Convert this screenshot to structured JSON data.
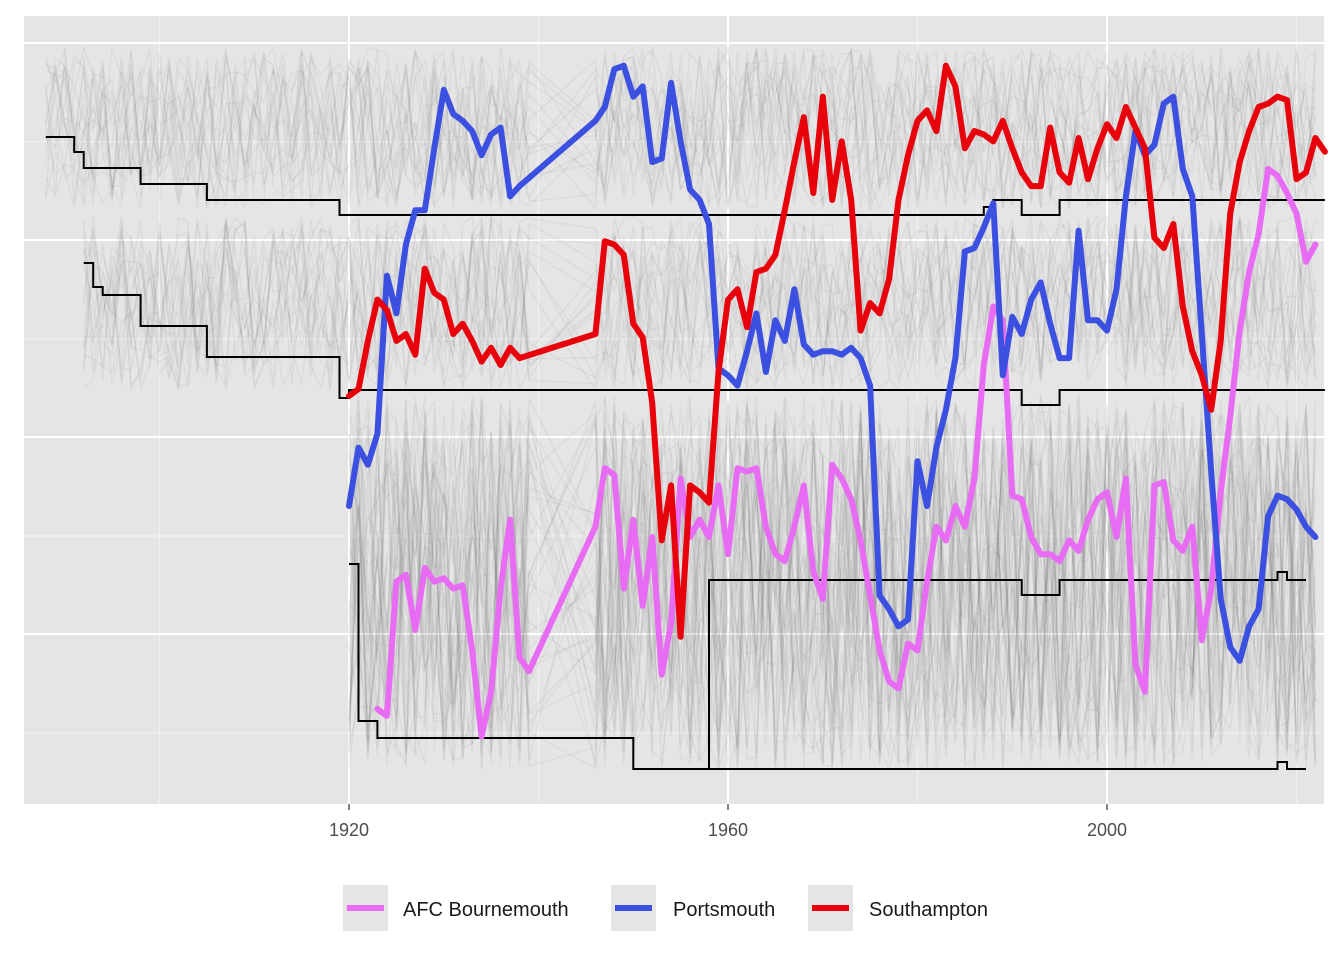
{
  "chart_data": {
    "type": "line",
    "title": "",
    "xlabel": "",
    "ylabel": "",
    "xlim": [
      1888,
      2022
    ],
    "x_ticks": [
      1920,
      1960,
      2000
    ],
    "x_tick_labels": [
      "1920",
      "1960",
      "2000"
    ],
    "grid": true,
    "legend_position": "bottom",
    "series": [
      {
        "name": "AFC Bournemouth",
        "color": "#e76bf3",
        "values": [
          [
            1923,
            0.25
          ],
          [
            1924,
            0.23
          ],
          [
            1925,
            0.62
          ],
          [
            1926,
            0.64
          ],
          [
            1927,
            0.48
          ],
          [
            1928,
            0.66
          ],
          [
            1929,
            0.62
          ],
          [
            1930,
            0.63
          ],
          [
            1931,
            0.6
          ],
          [
            1932,
            0.61
          ],
          [
            1933,
            0.42
          ],
          [
            1934,
            0.17
          ],
          [
            1935,
            0.3
          ],
          [
            1936,
            0.6
          ],
          [
            1937,
            0.8
          ],
          [
            1938,
            0.4
          ],
          [
            1939,
            0.36
          ],
          [
            1946,
            0.78
          ],
          [
            1947,
            0.95
          ],
          [
            1948,
            0.93
          ],
          [
            1949,
            0.6
          ],
          [
            1950,
            0.8
          ],
          [
            1951,
            0.55
          ],
          [
            1952,
            0.75
          ],
          [
            1953,
            0.35
          ],
          [
            1954,
            0.5
          ],
          [
            1955,
            0.92
          ],
          [
            1956,
            0.75
          ],
          [
            1957,
            0.8
          ],
          [
            1958,
            0.75
          ],
          [
            1959,
            0.9
          ],
          [
            1960,
            0.7
          ],
          [
            1961,
            0.95
          ],
          [
            1962,
            0.94
          ],
          [
            1963,
            0.95
          ],
          [
            1964,
            0.78
          ],
          [
            1965,
            0.7
          ],
          [
            1966,
            0.68
          ],
          [
            1967,
            0.78
          ],
          [
            1968,
            0.9
          ],
          [
            1969,
            0.65
          ],
          [
            1970,
            0.57
          ],
          [
            1971,
            0.96
          ],
          [
            1972,
            0.92
          ],
          [
            1973,
            0.86
          ],
          [
            1974,
            0.74
          ],
          [
            1975,
            0.58
          ],
          [
            1976,
            0.42
          ],
          [
            1977,
            0.33
          ],
          [
            1978,
            0.31
          ],
          [
            1979,
            0.44
          ],
          [
            1980,
            0.42
          ],
          [
            1981,
            0.62
          ],
          [
            1982,
            0.78
          ],
          [
            1983,
            0.74
          ],
          [
            1984,
            0.84
          ],
          [
            1985,
            0.78
          ],
          [
            1986,
            0.92
          ],
          [
            1987,
            1.25
          ],
          [
            1988,
            1.42
          ],
          [
            1989,
            1.38
          ],
          [
            1990,
            0.87
          ],
          [
            1991,
            0.86
          ],
          [
            1992,
            0.75
          ],
          [
            1993,
            0.7
          ],
          [
            1994,
            0.7
          ],
          [
            1995,
            0.68
          ],
          [
            1996,
            0.74
          ],
          [
            1997,
            0.71
          ],
          [
            1998,
            0.8
          ],
          [
            1999,
            0.86
          ],
          [
            2000,
            0.88
          ],
          [
            2001,
            0.75
          ],
          [
            2002,
            0.92
          ],
          [
            2003,
            0.38
          ],
          [
            2004,
            0.3
          ],
          [
            2005,
            0.9
          ],
          [
            2006,
            0.91
          ],
          [
            2007,
            0.74
          ],
          [
            2008,
            0.71
          ],
          [
            2009,
            0.78
          ],
          [
            2010,
            0.45
          ],
          [
            2011,
            0.6
          ],
          [
            2012,
            0.88
          ],
          [
            2013,
            1.1
          ],
          [
            2014,
            1.35
          ],
          [
            2015,
            1.52
          ],
          [
            2016,
            1.63
          ],
          [
            2017,
            1.82
          ],
          [
            2018,
            1.8
          ],
          [
            2019,
            1.75
          ],
          [
            2020,
            1.69
          ],
          [
            2021,
            1.55
          ],
          [
            2022,
            1.6
          ]
        ]
      },
      {
        "name": "Portsmouth",
        "color": "#3b4fe0",
        "values": [
          [
            1920,
            0.84
          ],
          [
            1921,
            1.01
          ],
          [
            1922,
            0.96
          ],
          [
            1923,
            1.05
          ],
          [
            1924,
            1.51
          ],
          [
            1925,
            1.4
          ],
          [
            1926,
            1.6
          ],
          [
            1927,
            1.7
          ],
          [
            1928,
            1.7
          ],
          [
            1929,
            1.88
          ],
          [
            1930,
            2.05
          ],
          [
            1931,
            1.98
          ],
          [
            1932,
            1.96
          ],
          [
            1933,
            1.93
          ],
          [
            1934,
            1.86
          ],
          [
            1935,
            1.92
          ],
          [
            1936,
            1.94
          ],
          [
            1937,
            1.74
          ],
          [
            1938,
            1.77
          ],
          [
            1946,
            1.96
          ],
          [
            1947,
            2.0
          ],
          [
            1948,
            2.11
          ],
          [
            1949,
            2.12
          ],
          [
            1950,
            2.03
          ],
          [
            1951,
            2.06
          ],
          [
            1952,
            1.84
          ],
          [
            1953,
            1.85
          ],
          [
            1954,
            2.07
          ],
          [
            1955,
            1.9
          ],
          [
            1956,
            1.76
          ],
          [
            1957,
            1.73
          ],
          [
            1958,
            1.66
          ],
          [
            1959,
            1.24
          ],
          [
            1960,
            1.22
          ],
          [
            1961,
            1.19
          ],
          [
            1962,
            1.29
          ],
          [
            1963,
            1.4
          ],
          [
            1964,
            1.23
          ],
          [
            1965,
            1.38
          ],
          [
            1966,
            1.32
          ],
          [
            1967,
            1.47
          ],
          [
            1968,
            1.31
          ],
          [
            1969,
            1.28
          ],
          [
            1970,
            1.29
          ],
          [
            1971,
            1.29
          ],
          [
            1972,
            1.28
          ],
          [
            1973,
            1.3
          ],
          [
            1974,
            1.27
          ],
          [
            1975,
            1.19
          ],
          [
            1976,
            0.58
          ],
          [
            1977,
            0.54
          ],
          [
            1978,
            0.49
          ],
          [
            1979,
            0.51
          ],
          [
            1980,
            0.97
          ],
          [
            1981,
            0.84
          ],
          [
            1982,
            1.01
          ],
          [
            1983,
            1.12
          ],
          [
            1984,
            1.27
          ],
          [
            1985,
            1.58
          ],
          [
            1986,
            1.59
          ],
          [
            1987,
            1.65
          ],
          [
            1988,
            1.72
          ],
          [
            1989,
            1.22
          ],
          [
            1990,
            1.39
          ],
          [
            1991,
            1.34
          ],
          [
            1992,
            1.44
          ],
          [
            1993,
            1.49
          ],
          [
            1994,
            1.37
          ],
          [
            1995,
            1.27
          ],
          [
            1996,
            1.27
          ],
          [
            1997,
            1.64
          ],
          [
            1998,
            1.38
          ],
          [
            1999,
            1.38
          ],
          [
            2000,
            1.35
          ],
          [
            2001,
            1.47
          ],
          [
            2002,
            1.74
          ],
          [
            2003,
            1.93
          ],
          [
            2004,
            1.86
          ],
          [
            2005,
            1.89
          ],
          [
            2006,
            2.01
          ],
          [
            2007,
            2.03
          ],
          [
            2008,
            1.82
          ],
          [
            2009,
            1.74
          ],
          [
            2010,
            1.34
          ],
          [
            2011,
            0.94
          ],
          [
            2012,
            0.57
          ],
          [
            2013,
            0.43
          ],
          [
            2014,
            0.39
          ],
          [
            2015,
            0.49
          ],
          [
            2016,
            0.54
          ],
          [
            2017,
            0.81
          ],
          [
            2018,
            0.87
          ],
          [
            2019,
            0.86
          ],
          [
            2020,
            0.83
          ],
          [
            2021,
            0.78
          ],
          [
            2022,
            0.75
          ]
        ]
      },
      {
        "name": "Southampton",
        "color": "#e8000b",
        "values": [
          [
            1920,
            1.16
          ],
          [
            1921,
            1.18
          ],
          [
            1922,
            1.32
          ],
          [
            1923,
            1.44
          ],
          [
            1924,
            1.41
          ],
          [
            1925,
            1.32
          ],
          [
            1926,
            1.34
          ],
          [
            1927,
            1.28
          ],
          [
            1928,
            1.53
          ],
          [
            1929,
            1.46
          ],
          [
            1930,
            1.44
          ],
          [
            1931,
            1.34
          ],
          [
            1932,
            1.37
          ],
          [
            1933,
            1.32
          ],
          [
            1934,
            1.26
          ],
          [
            1935,
            1.3
          ],
          [
            1936,
            1.25
          ],
          [
            1937,
            1.3
          ],
          [
            1938,
            1.27
          ],
          [
            1946,
            1.34
          ],
          [
            1947,
            1.61
          ],
          [
            1948,
            1.6
          ],
          [
            1949,
            1.57
          ],
          [
            1950,
            1.37
          ],
          [
            1951,
            1.33
          ],
          [
            1952,
            1.14
          ],
          [
            1953,
            0.74
          ],
          [
            1954,
            0.9
          ],
          [
            1955,
            0.46
          ],
          [
            1956,
            0.9
          ],
          [
            1957,
            0.88
          ],
          [
            1958,
            0.85
          ],
          [
            1959,
            1.23
          ],
          [
            1960,
            1.44
          ],
          [
            1961,
            1.47
          ],
          [
            1962,
            1.36
          ],
          [
            1963,
            1.52
          ],
          [
            1964,
            1.53
          ],
          [
            1965,
            1.57
          ],
          [
            1966,
            1.7
          ],
          [
            1967,
            1.84
          ],
          [
            1968,
            1.97
          ],
          [
            1969,
            1.75
          ],
          [
            1970,
            2.03
          ],
          [
            1971,
            1.73
          ],
          [
            1972,
            1.9
          ],
          [
            1973,
            1.73
          ],
          [
            1974,
            1.35
          ],
          [
            1975,
            1.43
          ],
          [
            1976,
            1.4
          ],
          [
            1977,
            1.5
          ],
          [
            1978,
            1.73
          ],
          [
            1979,
            1.86
          ],
          [
            1980,
            1.96
          ],
          [
            1981,
            1.99
          ],
          [
            1982,
            1.93
          ],
          [
            1983,
            2.12
          ],
          [
            1984,
            2.06
          ],
          [
            1985,
            1.88
          ],
          [
            1986,
            1.93
          ],
          [
            1987,
            1.92
          ],
          [
            1988,
            1.9
          ],
          [
            1989,
            1.96
          ],
          [
            1990,
            1.88
          ],
          [
            1991,
            1.81
          ],
          [
            1992,
            1.77
          ],
          [
            1993,
            1.77
          ],
          [
            1994,
            1.94
          ],
          [
            1995,
            1.81
          ],
          [
            1996,
            1.78
          ],
          [
            1997,
            1.91
          ],
          [
            1998,
            1.79
          ],
          [
            1999,
            1.88
          ],
          [
            2000,
            1.95
          ],
          [
            2001,
            1.91
          ],
          [
            2002,
            2.0
          ],
          [
            2003,
            1.94
          ],
          [
            2004,
            1.88
          ],
          [
            2005,
            1.62
          ],
          [
            2006,
            1.59
          ],
          [
            2007,
            1.66
          ],
          [
            2008,
            1.42
          ],
          [
            2009,
            1.29
          ],
          [
            2010,
            1.22
          ],
          [
            2011,
            1.12
          ],
          [
            2012,
            1.32
          ],
          [
            2013,
            1.69
          ],
          [
            2014,
            1.84
          ],
          [
            2015,
            1.93
          ],
          [
            2016,
            2.0
          ],
          [
            2017,
            2.01
          ],
          [
            2018,
            2.03
          ],
          [
            2019,
            2.02
          ],
          [
            2020,
            1.79
          ],
          [
            2021,
            1.81
          ],
          [
            2022,
            1.91
          ],
          [
            2023,
            1.87
          ]
        ]
      }
    ]
  },
  "legend": {
    "items": [
      {
        "label": "AFC Bournemouth",
        "color": "#e76bf3"
      },
      {
        "label": "Portsmouth",
        "color": "#3b4fe0"
      },
      {
        "label": "Southampton",
        "color": "#e8000b"
      }
    ]
  }
}
